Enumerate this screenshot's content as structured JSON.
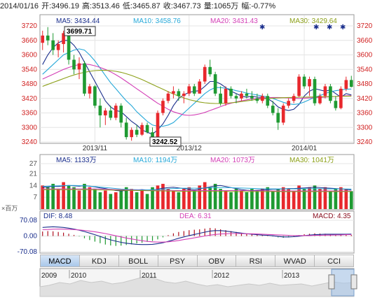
{
  "info": {
    "date": "2014/01/16",
    "open": "开:3496.19",
    "high": "高:3513.46",
    "low": "低:3465.87",
    "close": "收:3467.73",
    "volume": "量:1065万",
    "change": "幅:-0.77%"
  },
  "colors": {
    "up": "#e8282d",
    "down": "#1f9a32",
    "ma5": "#1a2e8c",
    "ma10": "#26a8d8",
    "ma20": "#d33fb6",
    "ma30": "#8ca019",
    "axis_price": "#d02020",
    "axis_neutral": "#555555"
  },
  "price_panel": {
    "legend": [
      "MA5: 3434.44",
      "MA10: 3458.76",
      "MA20: 3431.43",
      "MA30: 3429.64"
    ],
    "y_ticks": [
      "3720",
      "3660",
      "3600",
      "3540",
      "3480",
      "3420",
      "3360",
      "3300",
      "3240"
    ],
    "x_labels": [
      "2013/11",
      "2013/12",
      "2014/01"
    ],
    "high_label": "3699.71",
    "low_label": "3242.52"
  },
  "volume_panel": {
    "legend": [
      "MA5: 1133万",
      "MA10: 1194万",
      "MA20: 1073万",
      "MA30: 1041万"
    ],
    "y_ticks": [
      "27",
      "21",
      "14",
      "7"
    ],
    "unit": "×百万"
  },
  "macd_panel": {
    "legend": [
      "DIF: 8.48",
      "DEA: 6.31",
      "MACD: 4.35"
    ],
    "y_ticks": [
      "70.08",
      "0.00",
      "-70.08"
    ]
  },
  "tabs": [
    "MACD",
    "KDJ",
    "BOLL",
    "PSY",
    "OBV",
    "RSI",
    "WVAD",
    "CCI"
  ],
  "navigator": {
    "years": [
      "2009",
      "2010",
      "2011",
      "2012",
      "2013"
    ]
  },
  "chart_data": [
    {
      "type": "candlestick",
      "title": "",
      "x_labels": [
        "2013/11",
        "2013/12",
        "2014/01"
      ],
      "ylim": [
        3240,
        3720
      ],
      "annotations": {
        "high": 3699.71,
        "low": 3242.52
      },
      "candles_ohlc": [
        [
          3650,
          3700,
          3620,
          3680
        ],
        [
          3680,
          3715,
          3640,
          3660
        ],
        [
          3660,
          3690,
          3600,
          3620
        ],
        [
          3620,
          3660,
          3590,
          3645
        ],
        [
          3645,
          3700,
          3610,
          3690
        ],
        [
          3690,
          3700,
          3560,
          3580
        ],
        [
          3580,
          3600,
          3520,
          3540
        ],
        [
          3540,
          3590,
          3500,
          3565
        ],
        [
          3565,
          3575,
          3430,
          3440
        ],
        [
          3440,
          3480,
          3420,
          3470
        ],
        [
          3470,
          3475,
          3380,
          3390
        ],
        [
          3390,
          3420,
          3300,
          3350
        ],
        [
          3350,
          3380,
          3310,
          3370
        ],
        [
          3370,
          3390,
          3330,
          3340
        ],
        [
          3340,
          3400,
          3330,
          3390
        ],
        [
          3390,
          3400,
          3300,
          3320
        ],
        [
          3320,
          3340,
          3250,
          3260
        ],
        [
          3260,
          3300,
          3245,
          3290
        ],
        [
          3290,
          3310,
          3260,
          3270
        ],
        [
          3270,
          3320,
          3265,
          3310
        ],
        [
          3310,
          3320,
          3275,
          3280
        ],
        [
          3280,
          3300,
          3242,
          3255
        ],
        [
          3255,
          3370,
          3250,
          3360
        ],
        [
          3360,
          3420,
          3350,
          3410
        ],
        [
          3410,
          3450,
          3400,
          3440
        ],
        [
          3440,
          3470,
          3420,
          3450
        ],
        [
          3450,
          3460,
          3410,
          3430
        ],
        [
          3430,
          3450,
          3400,
          3440
        ],
        [
          3440,
          3480,
          3430,
          3470
        ],
        [
          3470,
          3480,
          3430,
          3440
        ],
        [
          3440,
          3500,
          3440,
          3490
        ],
        [
          3490,
          3560,
          3480,
          3550
        ],
        [
          3550,
          3580,
          3510,
          3520
        ],
        [
          3520,
          3530,
          3430,
          3440
        ],
        [
          3440,
          3470,
          3390,
          3400
        ],
        [
          3400,
          3470,
          3390,
          3460
        ],
        [
          3460,
          3470,
          3420,
          3430
        ],
        [
          3430,
          3440,
          3400,
          3420
        ],
        [
          3420,
          3450,
          3410,
          3440
        ],
        [
          3440,
          3460,
          3420,
          3430
        ],
        [
          3430,
          3450,
          3410,
          3420
        ],
        [
          3420,
          3440,
          3400,
          3410
        ],
        [
          3410,
          3440,
          3400,
          3430
        ],
        [
          3430,
          3440,
          3380,
          3390
        ],
        [
          3390,
          3410,
          3350,
          3360
        ],
        [
          3360,
          3380,
          3290,
          3320
        ],
        [
          3320,
          3400,
          3310,
          3390
        ],
        [
          3390,
          3420,
          3380,
          3410
        ],
        [
          3410,
          3440,
          3400,
          3430
        ],
        [
          3430,
          3520,
          3425,
          3510
        ],
        [
          3510,
          3520,
          3460,
          3470
        ],
        [
          3470,
          3510,
          3430,
          3500
        ],
        [
          3500,
          3510,
          3390,
          3400
        ],
        [
          3400,
          3440,
          3395,
          3430
        ],
        [
          3430,
          3480,
          3420,
          3470
        ],
        [
          3470,
          3480,
          3400,
          3410
        ],
        [
          3410,
          3430,
          3370,
          3380
        ],
        [
          3380,
          3470,
          3375,
          3460
        ],
        [
          3460,
          3510,
          3450,
          3496
        ],
        [
          3496.19,
          3513.46,
          3465.87,
          3467.73
        ]
      ],
      "series": [
        {
          "name": "MA5",
          "values": [
            3560,
            3600,
            3630,
            3650,
            3660,
            3660,
            3640,
            3610,
            3570,
            3530,
            3490,
            3450,
            3410,
            3385,
            3370,
            3365,
            3345,
            3325,
            3310,
            3290,
            3280,
            3272,
            3290,
            3315,
            3350,
            3390,
            3420,
            3435,
            3445,
            3450,
            3452,
            3470,
            3490,
            3490,
            3480,
            3465,
            3450,
            3440,
            3430,
            3425,
            3430,
            3425,
            3425,
            3420,
            3405,
            3385,
            3375,
            3370,
            3375,
            3395,
            3430,
            3450,
            3460,
            3455,
            3450,
            3455,
            3440,
            3425,
            3440,
            3434.44
          ]
        },
        {
          "name": "MA10",
          "values": [
            3520,
            3540,
            3560,
            3580,
            3600,
            3610,
            3620,
            3625,
            3620,
            3600,
            3575,
            3545,
            3515,
            3485,
            3460,
            3435,
            3410,
            3390,
            3365,
            3345,
            3325,
            3310,
            3305,
            3305,
            3310,
            3320,
            3340,
            3360,
            3380,
            3400,
            3420,
            3440,
            3455,
            3465,
            3465,
            3462,
            3458,
            3452,
            3448,
            3442,
            3438,
            3434,
            3430,
            3426,
            3420,
            3412,
            3404,
            3398,
            3395,
            3398,
            3405,
            3415,
            3425,
            3432,
            3440,
            3448,
            3452,
            3455,
            3458,
            3458.76
          ]
        },
        {
          "name": "MA20",
          "values": [
            3500,
            3510,
            3520,
            3530,
            3540,
            3548,
            3555,
            3560,
            3562,
            3560,
            3555,
            3548,
            3540,
            3530,
            3518,
            3505,
            3490,
            3475,
            3460,
            3445,
            3430,
            3415,
            3400,
            3388,
            3375,
            3365,
            3358,
            3352,
            3350,
            3352,
            3356,
            3362,
            3370,
            3378,
            3386,
            3394,
            3400,
            3406,
            3410,
            3414,
            3418,
            3420,
            3422,
            3423,
            3424,
            3424,
            3423,
            3422,
            3421,
            3420,
            3421,
            3422,
            3423,
            3424,
            3425,
            3427,
            3428,
            3430,
            3431,
            3431.43
          ]
        },
        {
          "name": "MA30",
          "values": [
            3470,
            3478,
            3486,
            3494,
            3502,
            3510,
            3517,
            3523,
            3528,
            3532,
            3535,
            3536,
            3536,
            3535,
            3532,
            3528,
            3522,
            3515,
            3507,
            3498,
            3488,
            3478,
            3468,
            3458,
            3448,
            3438,
            3430,
            3422,
            3415,
            3410,
            3405,
            3402,
            3400,
            3399,
            3399,
            3400,
            3402,
            3404,
            3407,
            3410,
            3413,
            3416,
            3418,
            3420,
            3421,
            3422,
            3423,
            3424,
            3424,
            3425,
            3425,
            3426,
            3426,
            3427,
            3427,
            3428,
            3428,
            3429,
            3429,
            3429.64
          ]
        }
      ]
    },
    {
      "type": "bar",
      "title": "",
      "ylim": [
        0,
        27
      ],
      "y_ticks": [
        27,
        21,
        14,
        7
      ],
      "values": [
        14,
        13,
        15,
        12,
        16,
        14,
        13,
        11,
        15,
        13,
        12,
        10,
        11,
        9,
        10,
        11,
        13,
        12,
        10,
        11,
        9,
        13,
        14,
        15,
        12,
        11,
        10,
        12,
        13,
        11,
        14,
        16,
        13,
        15,
        12,
        11,
        10,
        12,
        11,
        10,
        12,
        11,
        12,
        13,
        11,
        12,
        13,
        12,
        11,
        14,
        12,
        13,
        14,
        12,
        13,
        11,
        12,
        13,
        12,
        10.65
      ],
      "series": [
        {
          "name": "MA5",
          "values": [
            13,
            13.2,
            13.5,
            13.4,
            13.8,
            14,
            13.8,
            13.6,
            13.9,
            13.6,
            13.2,
            12.6,
            12.2,
            11.5,
            11,
            10.8,
            11,
            11.2,
            11.4,
            11.6,
            11.3,
            11.4,
            11.8,
            12.4,
            12.8,
            13,
            12.6,
            12.2,
            11.8,
            11.4,
            12,
            12.6,
            13.2,
            13.8,
            14,
            13.4,
            12.8,
            12.2,
            11.6,
            11.2,
            11,
            11.2,
            11.4,
            11.6,
            11.8,
            11.8,
            12,
            12.2,
            12.2,
            12.4,
            12.6,
            12.8,
            13,
            12.8,
            12.6,
            12.4,
            12.2,
            12,
            11.7,
            11.33
          ]
        },
        {
          "name": "MA10",
          "values": [
            13.5,
            13.6,
            13.7,
            13.8,
            13.9,
            14,
            14,
            13.9,
            13.8,
            13.6,
            13.4,
            13.1,
            12.8,
            12.5,
            12.2,
            11.9,
            11.7,
            11.6,
            11.5,
            11.4,
            11.4,
            11.5,
            11.6,
            11.8,
            12,
            12.2,
            12.3,
            12.4,
            12.4,
            12.4,
            12.4,
            12.5,
            12.6,
            12.7,
            12.8,
            12.8,
            12.7,
            12.6,
            12.5,
            12.4,
            12.3,
            12.2,
            12.1,
            12,
            12,
            12,
            12,
            12,
            12,
            12,
            12.1,
            12.1,
            12.1,
            12.1,
            12,
            12,
            12,
            12,
            11.97,
            11.94
          ]
        },
        {
          "name": "MA20",
          "values": [
            12,
            12,
            12,
            12,
            12,
            12,
            12,
            12,
            12,
            12,
            12,
            11.9,
            11.8,
            11.7,
            11.6,
            11.5,
            11.4,
            11.3,
            11.2,
            11.1,
            11,
            11,
            11,
            11,
            11,
            11,
            11,
            11,
            11,
            11,
            11,
            11,
            11,
            11,
            11,
            11,
            11,
            11,
            11,
            11,
            10.9,
            10.9,
            10.9,
            10.9,
            10.8,
            10.8,
            10.8,
            10.8,
            10.8,
            10.8,
            10.8,
            10.8,
            10.8,
            10.8,
            10.8,
            10.8,
            10.8,
            10.8,
            10.75,
            10.73
          ]
        },
        {
          "name": "MA30",
          "values": [
            11.5,
            11.5,
            11.5,
            11.5,
            11.5,
            11.5,
            11.5,
            11.5,
            11.5,
            11.5,
            11.4,
            11.4,
            11.3,
            11.3,
            11.2,
            11.2,
            11.1,
            11.1,
            11,
            11,
            10.9,
            10.9,
            10.8,
            10.8,
            10.7,
            10.7,
            10.6,
            10.6,
            10.6,
            10.5,
            10.5,
            10.5,
            10.5,
            10.5,
            10.5,
            10.5,
            10.5,
            10.4,
            10.4,
            10.4,
            10.4,
            10.4,
            10.4,
            10.4,
            10.4,
            10.4,
            10.4,
            10.4,
            10.4,
            10.4,
            10.4,
            10.4,
            10.4,
            10.4,
            10.4,
            10.4,
            10.4,
            10.4,
            10.41,
            10.41
          ]
        }
      ]
    },
    {
      "type": "bar",
      "title": "",
      "ylim": [
        -70.08,
        70.08
      ],
      "values": [
        20,
        22,
        21,
        18,
        15,
        10,
        5,
        -2,
        -10,
        -18,
        -25,
        -32,
        -38,
        -42,
        -44,
        -43,
        -40,
        -37,
        -33,
        -30,
        -26,
        -22,
        -15,
        -6,
        4,
        12,
        18,
        22,
        26,
        28,
        30,
        33,
        36,
        34,
        30,
        26,
        22,
        18,
        14,
        10,
        8,
        6,
        4,
        2,
        -2,
        -6,
        -8,
        -6,
        -2,
        4,
        8,
        10,
        12,
        11,
        10,
        9,
        8,
        7,
        6,
        4.35
      ],
      "series": [
        {
          "name": "DIF",
          "values": [
            38,
            40,
            41,
            40,
            38,
            35,
            31,
            26,
            20,
            13,
            6,
            -2,
            -10,
            -17,
            -23,
            -28,
            -32,
            -35,
            -37,
            -38,
            -38,
            -37,
            -34,
            -30,
            -24,
            -17,
            -10,
            -4,
            2,
            7,
            12,
            17,
            22,
            24,
            24,
            22,
            19,
            16,
            13,
            10,
            8,
            6,
            4,
            3,
            1,
            -2,
            -4,
            -4,
            -3,
            -1,
            2,
            4,
            6,
            7,
            8,
            8,
            8,
            8,
            8,
            8.48
          ]
        },
        {
          "name": "DEA",
          "values": [
            28,
            29,
            30.5,
            31,
            30.5,
            30,
            28.5,
            27,
            25,
            22,
            19,
            15,
            11,
            6,
            1,
            -4,
            -9,
            -13,
            -17,
            -21,
            -24,
            -26,
            -27,
            -27,
            -26,
            -23,
            -20,
            -16,
            -12,
            -8,
            -4,
            0,
            4,
            7,
            9,
            10,
            11,
            11,
            11,
            10,
            10,
            9,
            8,
            7,
            6,
            5,
            4,
            3,
            2,
            2,
            2,
            2,
            3,
            3,
            4,
            4,
            5,
            5,
            6,
            6.31
          ]
        }
      ]
    }
  ]
}
